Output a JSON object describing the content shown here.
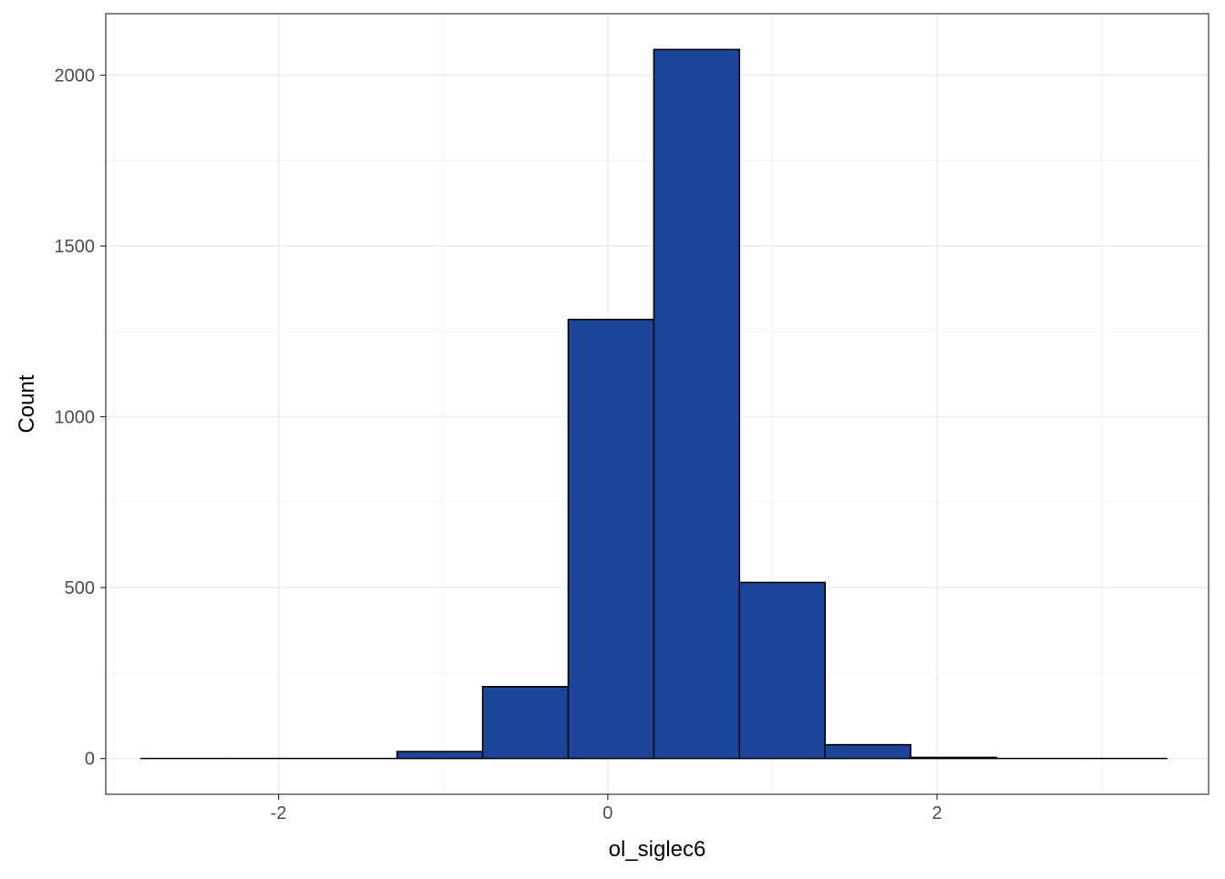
{
  "chart_data": {
    "type": "bar",
    "subtype": "histogram",
    "title": "",
    "xlabel": "ol_siglec6",
    "ylabel": "Count",
    "xlim": [
      -3.05,
      3.65
    ],
    "ylim": [
      -105,
      2180
    ],
    "x_ticks": [
      -2,
      0,
      2
    ],
    "x_tick_labels": [
      "-2",
      "0",
      "2"
    ],
    "y_ticks": [
      0,
      500,
      1000,
      1500,
      2000
    ],
    "y_tick_labels": [
      "0",
      "500",
      "1000",
      "1500",
      "2000"
    ],
    "grid": true,
    "legend": "none",
    "bin_width": 0.52,
    "bins": [
      {
        "x0": -2.84,
        "x1": -2.32,
        "count": 0
      },
      {
        "x0": -2.32,
        "x1": -1.8,
        "count": 0
      },
      {
        "x0": -1.8,
        "x1": -1.28,
        "count": 0
      },
      {
        "x0": -1.28,
        "x1": -0.76,
        "count": 20
      },
      {
        "x0": -0.76,
        "x1": -0.24,
        "count": 210
      },
      {
        "x0": -0.24,
        "x1": 0.28,
        "count": 1285
      },
      {
        "x0": 0.28,
        "x1": 0.8,
        "count": 2075
      },
      {
        "x0": 0.8,
        "x1": 1.32,
        "count": 515
      },
      {
        "x0": 1.32,
        "x1": 1.84,
        "count": 40
      },
      {
        "x0": 1.84,
        "x1": 2.36,
        "count": 3
      },
      {
        "x0": 2.36,
        "x1": 2.88,
        "count": 0
      },
      {
        "x0": 2.88,
        "x1": 3.4,
        "count": 0
      }
    ]
  },
  "colors": {
    "bar_fill": "#1a4599",
    "bar_stroke": "#000000",
    "panel_border": "#333333",
    "grid_major": "#ebebeb",
    "grid_minor": "#f3f3f3",
    "tick_label": "#4d4d4d",
    "axis_title": "#000000"
  }
}
